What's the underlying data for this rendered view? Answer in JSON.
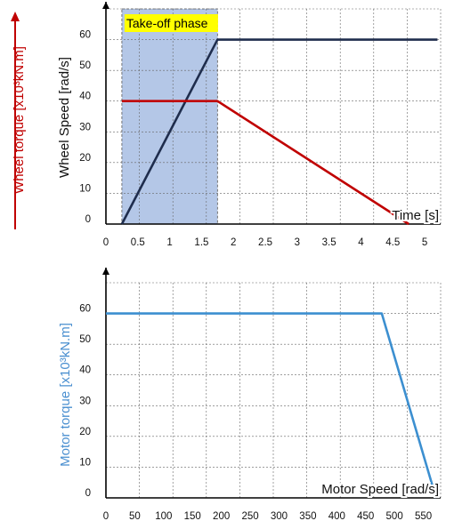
{
  "chart_data": [
    {
      "type": "line",
      "title": "",
      "xlabel": "Time [s]",
      "ylabel": "Wheel Speed [rad/s]",
      "ylabel_secondary": "Wheel torque [x10³kN.m]",
      "xlim": [
        0,
        5.25
      ],
      "ylim": [
        0,
        70
      ],
      "x_ticks": [
        "0",
        "0.5",
        "1",
        "1.5",
        "2",
        "2.5",
        "3",
        "3.5",
        "4",
        "4.5",
        "5"
      ],
      "y_ticks": [
        "0",
        "10",
        "20",
        "30",
        "40",
        "50",
        "60"
      ],
      "grid": true,
      "shaded_region": {
        "label": "Take-off phase",
        "x_range": [
          0.25,
          1.75
        ],
        "color": "#b4c7e7",
        "label_color": "#ffff00"
      },
      "series": [
        {
          "name": "",
          "axis": "Wheel Speed [rad/s]",
          "color": "#1f2d4d",
          "points": [
            [
              0.25,
              0
            ],
            [
              1.75,
              60
            ],
            [
              5.2,
              60
            ]
          ]
        },
        {
          "name": "",
          "axis": "Wheel torque [x10³kN.m]",
          "color": "#c00000",
          "points": [
            [
              0.25,
              40
            ],
            [
              1.75,
              40
            ],
            [
              4.75,
              0
            ]
          ]
        }
      ],
      "colors": {
        "wheel_torque_label": "#c00000",
        "wheel_speed_label": "#111111"
      }
    },
    {
      "type": "line",
      "title": "",
      "xlabel": "Motor Speed [rad/s]",
      "ylabel": "Motor torque [x10³kN.m]",
      "xlim": [
        0,
        580
      ],
      "ylim": [
        0,
        70
      ],
      "x_ticks": [
        "0",
        "50",
        "100",
        "150",
        "200",
        "250",
        "300",
        "350",
        "400",
        "450",
        "500",
        "550"
      ],
      "y_ticks": [
        "0",
        "10",
        "20",
        "30",
        "40",
        "50",
        "60"
      ],
      "grid": true,
      "series": [
        {
          "name": "",
          "color": "#3c8fd0",
          "points": [
            [
              0,
              60
            ],
            [
              478,
              60
            ],
            [
              572,
              0
            ]
          ]
        }
      ],
      "colors": {
        "ylabel": "#4a8fd0"
      }
    }
  ]
}
